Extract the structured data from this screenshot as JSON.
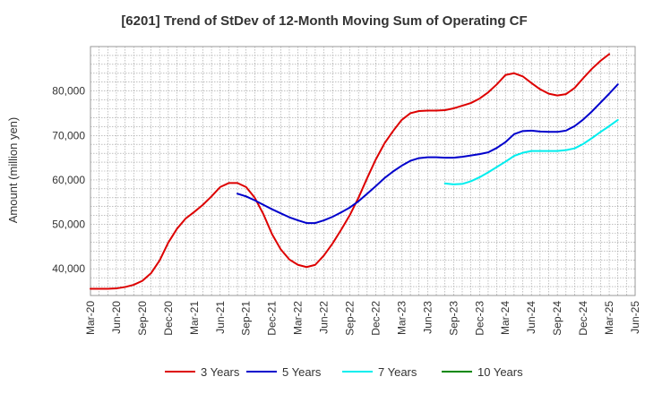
{
  "chart_data": {
    "type": "line",
    "title": "[6201]  Trend of StDev of 12-Month Moving Sum of Operating CF",
    "xlabel": "",
    "ylabel": "Amount (million yen)",
    "ylim": [
      34000,
      90000
    ],
    "yticks": [
      40000,
      50000,
      60000,
      70000,
      80000
    ],
    "ytick_labels": [
      "40,000",
      "50,000",
      "60,000",
      "70,000",
      "80,000"
    ],
    "x_start": "2020-03",
    "x_end": "2025-06",
    "x_tick_labels": [
      "Mar-20",
      "Jun-20",
      "Sep-20",
      "Dec-20",
      "Mar-21",
      "Jun-21",
      "Sep-21",
      "Dec-21",
      "Mar-22",
      "Jun-22",
      "Sep-22",
      "Dec-22",
      "Mar-23",
      "Jun-23",
      "Sep-23",
      "Dec-23",
      "Mar-24",
      "Jun-24",
      "Sep-24",
      "Dec-24",
      "Mar-25",
      "Jun-25"
    ],
    "grid": true,
    "legend_position": "bottom",
    "series": [
      {
        "name": "3 Years",
        "color": "#dd0000",
        "start": "2020-03",
        "values": [
          35500,
          35500,
          35500,
          35600,
          35900,
          36400,
          37300,
          39000,
          41900,
          45900,
          49000,
          51300,
          52800,
          54400,
          56300,
          58400,
          59300,
          59300,
          58400,
          56000,
          52300,
          47800,
          44400,
          42100,
          40900,
          40400,
          40900,
          43000,
          45700,
          48800,
          52100,
          56000,
          60400,
          64600,
          68200,
          71000,
          73500,
          75000,
          75500,
          75600,
          75600,
          75700,
          76100,
          76700,
          77300,
          78300,
          79700,
          81500,
          83600,
          84000,
          83300,
          81800,
          80400,
          79400,
          79000,
          79300,
          80700,
          82900,
          85000,
          86800,
          88300
        ]
      },
      {
        "name": "5 Years",
        "color": "#0000cc",
        "start": "2021-08",
        "values": [
          56900,
          56300,
          55400,
          54400,
          53400,
          52500,
          51600,
          50900,
          50300,
          50300,
          50900,
          51700,
          52700,
          53800,
          55200,
          56900,
          58600,
          60400,
          61900,
          63200,
          64300,
          64900,
          65100,
          65100,
          65000,
          65000,
          65200,
          65500,
          65800,
          66200,
          67200,
          68500,
          70300,
          71000,
          71100,
          70900,
          70800,
          70800,
          71100,
          72100,
          73600,
          75400,
          77400,
          79400,
          81500
        ]
      },
      {
        "name": "7 Years",
        "color": "#00eeee",
        "start": "2023-08",
        "values": [
          59200,
          59000,
          59100,
          59700,
          60600,
          61700,
          62900,
          64100,
          65400,
          66100,
          66500,
          66500,
          66500,
          66500,
          66700,
          67100,
          68100,
          69400,
          70800,
          72100,
          73500
        ]
      },
      {
        "name": "10 Years",
        "color": "#008800",
        "start": "2025-03",
        "values": []
      }
    ]
  }
}
